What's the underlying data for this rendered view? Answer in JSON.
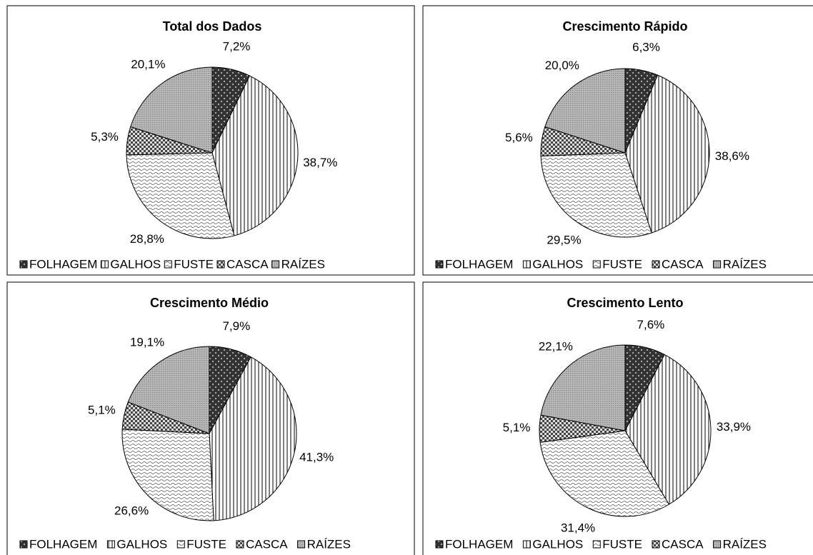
{
  "chart_data": [
    {
      "type": "pie",
      "title": "Total dos Dados",
      "categories": [
        "FOLHAGEM",
        "GALHOS",
        "FUSTE",
        "CASCA",
        "RAÍZES"
      ],
      "values": [
        7.2,
        38.7,
        28.8,
        5.3,
        20.1
      ],
      "value_labels": [
        "7,2%",
        "38,7%",
        "28,8%",
        "5,3%",
        "20,1%"
      ],
      "patterns": [
        "dots",
        "vertical",
        "wave",
        "checker",
        "grid"
      ],
      "legend": "bottom"
    },
    {
      "type": "pie",
      "title": "Crescimento Rápido",
      "categories": [
        "FOLHAGEM",
        "GALHOS",
        "FUSTE",
        "CASCA",
        "RAÍZES"
      ],
      "values": [
        6.3,
        38.6,
        29.5,
        5.6,
        20.0
      ],
      "value_labels": [
        "6,3%",
        "38,6%",
        "29,5%",
        "5,6%",
        "20,0%"
      ],
      "patterns": [
        "dots",
        "vertical",
        "wave",
        "checker",
        "grid"
      ],
      "legend": "bottom"
    },
    {
      "type": "pie",
      "title": "Crescimento Médio",
      "categories": [
        "FOLHAGEM",
        "GALHOS",
        "FUSTE",
        "CASCA",
        "RAÍZES"
      ],
      "values": [
        7.9,
        41.3,
        26.6,
        5.1,
        19.1
      ],
      "value_labels": [
        "7,9%",
        "41,3%",
        "26,6%",
        "5,1%",
        "19,1%"
      ],
      "patterns": [
        "dots",
        "vertical",
        "wave",
        "checker",
        "grid"
      ],
      "legend": "bottom"
    },
    {
      "type": "pie",
      "title": "Crescimento Lento",
      "categories": [
        "FOLHAGEM",
        "GALHOS",
        "FUSTE",
        "CASCA",
        "RAÍZES"
      ],
      "values": [
        7.6,
        33.9,
        31.4,
        5.1,
        22.1
      ],
      "value_labels": [
        "7,6%",
        "33,9%",
        "31,4%",
        "5,1%",
        "22,1%"
      ],
      "patterns": [
        "dots",
        "vertical",
        "wave",
        "checker",
        "grid"
      ],
      "legend": "bottom"
    }
  ]
}
